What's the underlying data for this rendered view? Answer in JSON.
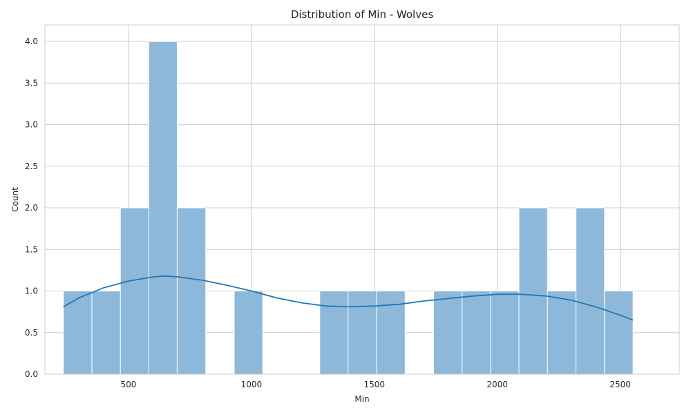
{
  "chart_data": {
    "type": "bar",
    "title": "Distribution of Min - Wolves",
    "xlabel": "Min",
    "ylabel": "Count",
    "xlim": [
      160,
      2740
    ],
    "ylim": [
      0,
      4.2
    ],
    "xticks": [
      500,
      1000,
      1500,
      2000,
      2500
    ],
    "yticks": [
      0.0,
      0.5,
      1.0,
      1.5,
      2.0,
      2.5,
      3.0,
      3.5,
      4.0
    ],
    "grid": true,
    "bin_edges": [
      235,
      351,
      467,
      583,
      698,
      814,
      930,
      1046,
      1162,
      1278,
      1393,
      1509,
      1625,
      1741,
      1857,
      1973,
      2088,
      2204,
      2320,
      2436,
      2552
    ],
    "values": [
      1,
      1,
      2,
      4,
      2,
      0,
      1,
      0,
      0,
      1,
      1,
      1,
      0,
      1,
      1,
      1,
      2,
      1,
      2,
      1
    ],
    "kde": {
      "x": [
        235,
        300,
        400,
        500,
        600,
        650,
        700,
        800,
        900,
        1000,
        1100,
        1200,
        1300,
        1400,
        1500,
        1600,
        1700,
        1800,
        1900,
        2000,
        2100,
        2200,
        2300,
        2400,
        2500,
        2552
      ],
      "y": [
        0.81,
        0.92,
        1.04,
        1.12,
        1.17,
        1.18,
        1.17,
        1.13,
        1.07,
        1.0,
        0.92,
        0.86,
        0.82,
        0.81,
        0.82,
        0.84,
        0.88,
        0.91,
        0.94,
        0.96,
        0.96,
        0.94,
        0.89,
        0.81,
        0.71,
        0.65
      ]
    },
    "colors": {
      "bar": "#8eb8da",
      "bar_edge": "#ffffff",
      "kde": "#1f77b4",
      "grid": "#cccccc",
      "axes_edge": "#cccccc"
    }
  }
}
